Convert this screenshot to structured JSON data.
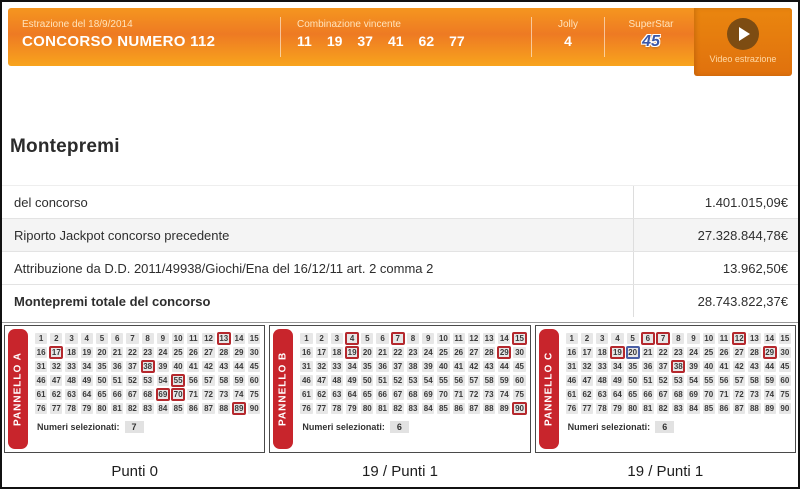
{
  "header": {
    "draw_label": "Estrazione del 18/9/2014",
    "title": "CONCORSO NUMERO 112",
    "combination": {
      "label": "Combinazione vincente",
      "numbers": [
        "11",
        "19",
        "37",
        "41",
        "62",
        "77"
      ]
    },
    "jolly": {
      "label": "Jolly",
      "value": "4"
    },
    "superstar": {
      "label": "SuperStar",
      "value": "45"
    },
    "video": {
      "label": "Video estrazione"
    }
  },
  "montepremi": {
    "title": "Montepremi",
    "rows": [
      {
        "label": "del concorso",
        "value": "1.401.015,09€"
      },
      {
        "label": "Riporto Jackpot concorso precedente",
        "value": "27.328.844,78€"
      },
      {
        "label": "Attribuzione da D.D. 2011/49938/Giochi/Ena del 16/12/11 art. 2 comma 2",
        "value": "13.962,50€"
      },
      {
        "label": "Montepremi totale del concorso",
        "value": "28.743.822,37€"
      }
    ]
  },
  "grid": {
    "min": 1,
    "max": 90,
    "per_row": 15
  },
  "panels": [
    {
      "name": "PANNELLO A",
      "selected": [
        13,
        17,
        38,
        55,
        69,
        70,
        89
      ],
      "superstar": [],
      "footer_label": "Numeri selezionati:",
      "count": "7",
      "caption": "Punti 0"
    },
    {
      "name": "PANNELLO B",
      "selected": [
        4,
        7,
        15,
        19,
        29,
        90
      ],
      "superstar": [],
      "footer_label": "Numeri selezionati:",
      "count": "6",
      "caption": "19 / Punti 1"
    },
    {
      "name": "PANNELLO C",
      "selected": [
        6,
        7,
        12,
        19,
        29,
        38
      ],
      "superstar": [
        20
      ],
      "footer_label": "Numeri selezionati:",
      "count": "6",
      "caption": "19 / Punti 1"
    }
  ],
  "colors": {
    "header_orange_top": "#f5961f",
    "header_orange_bottom": "#f8a41d",
    "video_panel_orange": "#e0710d",
    "ribbon_red": "#c8252c",
    "selection_red": "#b5282d",
    "superstar_blue": "#3a57a7",
    "cell_gray": "#e7e7e7",
    "alt_row_gray": "#f4f4f4"
  }
}
